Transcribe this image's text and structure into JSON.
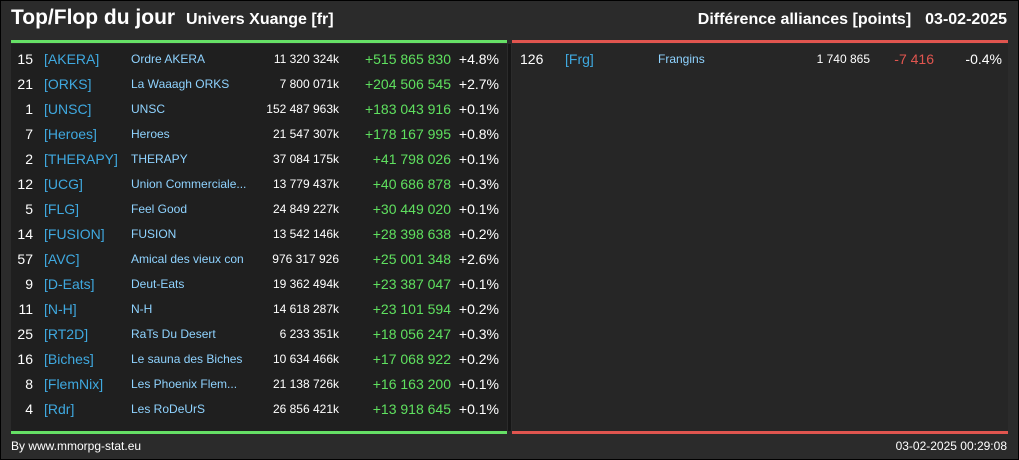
{
  "header": {
    "title": "Top/Flop du jour",
    "universe": "Univers Xuange [fr]",
    "metric": "Différence alliances [points]",
    "date": "03-02-2025"
  },
  "colors": {
    "positive": "#5fe05f",
    "negative": "#e0554f",
    "tag": "#3fa9e0",
    "name": "#8fd3ff"
  },
  "top": [
    {
      "rank": "15",
      "tag": "[AKERA]",
      "name": "Ordre AKERA",
      "points": "11 320 324k",
      "diff": "+515 865 830",
      "pct": "+4.8%"
    },
    {
      "rank": "21",
      "tag": "[ORKS]",
      "name": "La Waaagh ORKS",
      "points": "7 800 071k",
      "diff": "+204 506 545",
      "pct": "+2.7%"
    },
    {
      "rank": "1",
      "tag": "[UNSC]",
      "name": "UNSC",
      "points": "152 487 963k",
      "diff": "+183 043 916",
      "pct": "+0.1%"
    },
    {
      "rank": "7",
      "tag": "[Heroes]",
      "name": "Heroes",
      "points": "21 547 307k",
      "diff": "+178 167 995",
      "pct": "+0.8%"
    },
    {
      "rank": "2",
      "tag": "[THERAPY]",
      "name": "THERAPY",
      "points": "37 084 175k",
      "diff": "+41 798 026",
      "pct": "+0.1%"
    },
    {
      "rank": "12",
      "tag": "[UCG]",
      "name": "Union Commerciale...",
      "points": "13 779 437k",
      "diff": "+40 686 878",
      "pct": "+0.3%"
    },
    {
      "rank": "5",
      "tag": "[FLG]",
      "name": "Feel Good",
      "points": "24 849 227k",
      "diff": "+30 449 020",
      "pct": "+0.1%"
    },
    {
      "rank": "14",
      "tag": "[FUSION]",
      "name": "FUSION",
      "points": "13 542 146k",
      "diff": "+28 398 638",
      "pct": "+0.2%"
    },
    {
      "rank": "57",
      "tag": "[AVC]",
      "name": "Amical des vieux con",
      "points": "976 317 926",
      "diff": "+25 001 348",
      "pct": "+2.6%"
    },
    {
      "rank": "9",
      "tag": "[D-Eats]",
      "name": "Deut-Eats",
      "points": "19 362 494k",
      "diff": "+23 387 047",
      "pct": "+0.1%"
    },
    {
      "rank": "11",
      "tag": "[N-H]",
      "name": "N-H",
      "points": "14 618 287k",
      "diff": "+23 101 594",
      "pct": "+0.2%"
    },
    {
      "rank": "25",
      "tag": "[RT2D]",
      "name": "RaTs Du Desert",
      "points": "6 233 351k",
      "diff": "+18 056 247",
      "pct": "+0.3%"
    },
    {
      "rank": "16",
      "tag": "[Biches]",
      "name": "Le sauna des Biches",
      "points": "10 634 466k",
      "diff": "+17 068 922",
      "pct": "+0.2%"
    },
    {
      "rank": "8",
      "tag": "[FlemNix]",
      "name": "Les Phoenix Flem...",
      "points": "21 138 726k",
      "diff": "+16 163 200",
      "pct": "+0.1%"
    },
    {
      "rank": "4",
      "tag": "[Rdr]",
      "name": "Les RoDeUrS",
      "points": "26 856 421k",
      "diff": "+13 918 645",
      "pct": "+0.1%"
    }
  ],
  "flop": [
    {
      "rank": "126",
      "tag": "[Frg]",
      "name": "Frangins",
      "points": "1 740 865",
      "diff": "-7 416",
      "pct": "-0.4%"
    }
  ],
  "footer": {
    "source": "By www.mmorpg-stat.eu",
    "timestamp": "03-02-2025 00:29:08"
  }
}
